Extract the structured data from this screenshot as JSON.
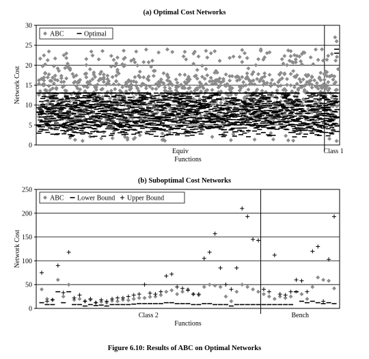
{
  "chart_data": [
    {
      "type": "scatter",
      "title": "(a)  Optimal Cost Networks",
      "ylabel": "Network Cost",
      "xlabel": "Functions",
      "ylim": [
        0,
        30
      ],
      "yticks": [
        0,
        5,
        10,
        15,
        20,
        25,
        30
      ],
      "grid": true,
      "legend_position": "top-left",
      "x_regions": [
        {
          "label": "Equiv",
          "from": 0,
          "to": 0.95
        },
        {
          "label": "Class 1",
          "from": 0.95,
          "to": 1.0
        }
      ],
      "series": [
        {
          "name": "ABC",
          "marker": "diamond",
          "color": "#8c8c8c",
          "value_range": [
            1,
            27
          ],
          "typical_range": [
            6,
            20
          ]
        },
        {
          "name": "Optimal",
          "marker": "dash",
          "color": "#000000",
          "value_range": [
            1,
            24
          ],
          "typical_range": [
            2,
            13
          ]
        }
      ]
    },
    {
      "type": "scatter",
      "title": "(b)  Suboptimal Cost Networks",
      "ylabel": "Network Cost",
      "xlabel": "Functions",
      "ylim": [
        0,
        250
      ],
      "yticks": [
        0,
        50,
        100,
        150,
        200,
        250
      ],
      "grid": true,
      "legend_position": "top-left",
      "x_regions": [
        {
          "label": "Class 2",
          "from": 0,
          "to": 0.74
        },
        {
          "label": "Bench",
          "from": 0.74,
          "to": 1.0
        }
      ],
      "x": [
        1,
        2,
        3,
        4,
        5,
        6,
        7,
        8,
        9,
        10,
        11,
        12,
        13,
        14,
        15,
        16,
        17,
        18,
        19,
        20,
        21,
        22,
        23,
        24,
        25,
        26,
        27,
        28,
        29,
        30,
        31,
        32,
        33,
        34,
        35,
        36,
        37,
        38,
        39,
        40,
        41,
        42,
        43,
        44,
        45,
        46,
        47,
        48,
        49,
        50,
        51,
        52,
        53,
        54,
        55
      ],
      "series": [
        {
          "name": "ABC",
          "marker": "diamond",
          "color": "#8c8c8c",
          "values": [
            40,
            20,
            18,
            60,
            25,
            50,
            18,
            20,
            15,
            18,
            12,
            14,
            12,
            16,
            15,
            18,
            17,
            20,
            22,
            22,
            24,
            25,
            28,
            35,
            38,
            30,
            35,
            40,
            30,
            28,
            45,
            50,
            48,
            45,
            25,
            15,
            35,
            50,
            45,
            40,
            35,
            30,
            25,
            20,
            25,
            22,
            25,
            35,
            30,
            20,
            45,
            65,
            60,
            58,
            42
          ]
        },
        {
          "name": "Lower Bound",
          "marker": "dash",
          "color": "#000000",
          "values": [
            12,
            8,
            8,
            35,
            12,
            35,
            8,
            8,
            5,
            8,
            6,
            7,
            5,
            8,
            8,
            8,
            8,
            9,
            10,
            10,
            10,
            10,
            10,
            12,
            12,
            10,
            10,
            10,
            8,
            8,
            10,
            10,
            8,
            8,
            8,
            5,
            8,
            8,
            8,
            8,
            8,
            8,
            8,
            8,
            8,
            8,
            8,
            35,
            15,
            12,
            15,
            12,
            10,
            12,
            10
          ]
        },
        {
          "name": "Upper Bound",
          "marker": "plus",
          "color": "#000000",
          "values": [
            75,
            15,
            18,
            90,
            33,
            118,
            22,
            28,
            15,
            20,
            12,
            18,
            15,
            20,
            22,
            22,
            25,
            28,
            30,
            50,
            32,
            30,
            35,
            68,
            72,
            45,
            42,
            38,
            30,
            30,
            105,
            118,
            157,
            85,
            50,
            40,
            85,
            210,
            193,
            145,
            143,
            40,
            35,
            112,
            30,
            28,
            35,
            60,
            58,
            35,
            120,
            130,
            15,
            103,
            193
          ]
        }
      ]
    }
  ],
  "captions": {
    "figure": "Figure 6.10: Results of ABC on Optimal Networks"
  }
}
